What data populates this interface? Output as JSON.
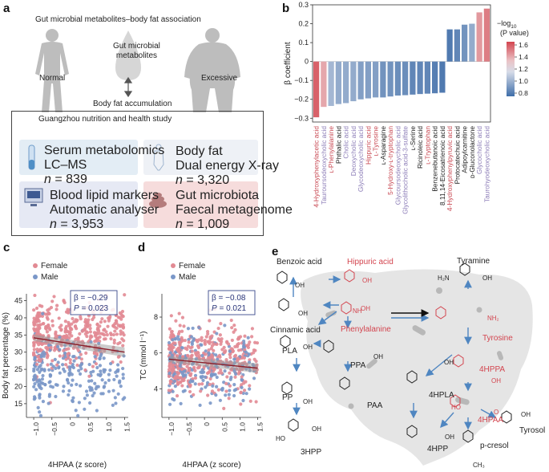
{
  "panels": {
    "a": "a",
    "b": "b",
    "c": "c",
    "d": "d",
    "e": "e"
  },
  "panel_a": {
    "title": "Gut microbial metabolites–body fat association",
    "normal": "Normal",
    "excessive": "Excessive",
    "metabolites": [
      "Gut microbial",
      "metabolites"
    ],
    "accumulation": "Body fat accumulation",
    "study_title": "Guangzhou nutrition and health study",
    "cards": [
      {
        "l1": "Serum metabolomics",
        "l2": "LC–MS",
        "n_label": "n",
        "n_value": " = 839",
        "color": "#e3edf5"
      },
      {
        "l1": "Body fat",
        "l2": "Dual energy X-ray",
        "n_label": "n",
        "n_value": " = 3,320",
        "color": "#eef1f6"
      },
      {
        "l1": "Blood lipid markers",
        "l2": "Automatic analyser",
        "n_label": "n",
        "n_value": " = 3,953",
        "color": "#e6e9f4"
      },
      {
        "l1": "Gut microbiota",
        "l2": "Faecal metagenome",
        "n_label": "n",
        "n_value": " = 1,009",
        "color": "#f6dcdc"
      }
    ]
  },
  "chart_data": [
    {
      "type": "bar",
      "panel": "b",
      "ylabel": "β coefficient",
      "ylim": [
        -0.32,
        0.3
      ],
      "yticks": [
        -0.3,
        -0.2,
        -0.1,
        0,
        0.1,
        0.2,
        0.3
      ],
      "ytick_labels": [
        "−0.3",
        "−0.2",
        "−0.1",
        "0",
        "0.1",
        "0.2",
        "0.3"
      ],
      "colorbar_title": [
        "−log",
        "10",
        "(P value)"
      ],
      "colorbar_ticks": [
        "1.6",
        "1.4",
        "1.2",
        "1.0",
        "0.8"
      ],
      "colors": {
        "negative_low": "#4c7db5",
        "negative_mid": "#a9bcd8",
        "positive_low": "#3e6fa9",
        "positive_mid": "#c7d2e6",
        "pink": "#e6a3a9",
        "red": "#d3454f"
      },
      "categories": [
        "4-Hydroxyphenylacetic acid",
        "Tauroursodeoxycholic acid",
        "ʟ-Phenylalanine",
        "Phthalic acid",
        "Cholic acid",
        "Deoxycholic acid",
        "Glycodeoxycholic acid",
        "Hippuric acid",
        "ʟ-Tyrosine",
        "ʟ-Asparagine",
        "5-Hydroxy-ʟ-tryptophan",
        "Glycoursodeoxycholic acid",
        "Glycolithocholic acid-3-sulfate",
        "ʟ-Serine",
        "Ricinoleic acid",
        "ʟ-Tryptophan",
        "Benzenebutanoic acid",
        "8,11,14-Eicosatrienoic acid",
        "4-Hydroxyphenylpyruvic acid",
        "Protocatechuic acid",
        "Adipoylcarnitine",
        "ᴅ-Gluconolactone",
        "Glycocholic acid",
        "Taurohyodeoxycholic acid"
      ],
      "values": [
        -0.295,
        -0.24,
        -0.235,
        -0.225,
        -0.22,
        -0.21,
        -0.2,
        -0.195,
        -0.19,
        -0.19,
        -0.185,
        -0.18,
        -0.178,
        -0.175,
        -0.172,
        -0.17,
        -0.168,
        -0.165,
        0.17,
        0.17,
        0.195,
        0.2,
        0.26,
        0.28
      ],
      "neglog10_p": [
        1.55,
        1.3,
        1.05,
        1.0,
        1.0,
        1.0,
        0.95,
        0.95,
        0.95,
        0.9,
        0.9,
        0.88,
        0.88,
        0.85,
        0.85,
        0.85,
        0.82,
        0.8,
        0.8,
        0.85,
        0.9,
        1.0,
        1.35,
        1.45
      ],
      "label_colors": [
        "#c94b55",
        "#8d7eb8",
        "#c94b55",
        "#222",
        "#8d7eb8",
        "#8d7eb8",
        "#8d7eb8",
        "#c94b55",
        "#c94b55",
        "#222",
        "#c94b55",
        "#8d7eb8",
        "#8d7eb8",
        "#222",
        "#222",
        "#c94b55",
        "#222",
        "#222",
        "#c94b55",
        "#222",
        "#222",
        "#222",
        "#8d7eb8",
        "#8d7eb8"
      ]
    },
    {
      "type": "scatter",
      "panel": "c",
      "xlabel": "4HPAA (z score)",
      "ylabel": "Body fat percentage (%)",
      "xlim": [
        -1.2,
        1.6
      ],
      "ylim": [
        11,
        47
      ],
      "xticks": [
        -1.0,
        -0.5,
        0,
        0.5,
        1.0,
        1.5
      ],
      "xtick_labels": [
        "−1.0",
        "−0.5",
        "0",
        "0.5",
        "1.0",
        "1.5"
      ],
      "yticks": [
        15,
        20,
        25,
        30,
        35,
        40,
        45
      ],
      "legend": [
        "Female",
        "Male"
      ],
      "colors": {
        "Female": "#e28a93",
        "Male": "#7a97c8",
        "line": "#8b1e2a"
      },
      "fit_line": {
        "x": [
          -1.0,
          1.5
        ],
        "y": [
          34.2,
          30.0
        ]
      },
      "stat_beta": {
        "symbol": "β",
        "value": " = −0.29"
      },
      "stat_p": {
        "symbol": "P",
        "value": " = 0.023"
      },
      "series": [
        {
          "name": "Female",
          "count": 430,
          "x_range": [
            -1.0,
            1.5
          ],
          "y_mean": 35,
          "y_sd": 4.5
        },
        {
          "name": "Male",
          "count": 230,
          "x_range": [
            -1.0,
            1.5
          ],
          "y_mean": 24,
          "y_sd": 5
        }
      ]
    },
    {
      "type": "scatter",
      "panel": "d",
      "xlabel": "4HPAA (z score)",
      "ylabel": "TC (mmol l⁻¹)",
      "xlim": [
        -1.2,
        1.6
      ],
      "ylim": [
        2.4,
        9.3
      ],
      "xticks": [
        -1.0,
        -0.5,
        0,
        0.5,
        1.0,
        1.5
      ],
      "xtick_labels": [
        "−1.0",
        "−0.5",
        "0",
        "0.5",
        "1.0",
        "1.5"
      ],
      "yticks": [
        4,
        6,
        8
      ],
      "legend": [
        "Female",
        "Male"
      ],
      "colors": {
        "Female": "#e28a93",
        "Male": "#7a97c8",
        "line": "#8b1e2a"
      },
      "fit_line": {
        "x": [
          -1.0,
          1.5
        ],
        "y": [
          5.65,
          5.15
        ]
      },
      "stat_beta": {
        "symbol": "β",
        "value": " = −0.08"
      },
      "stat_p": {
        "symbol": "P",
        "value": " = 0.021"
      },
      "series": [
        {
          "name": "Female",
          "count": 430,
          "x_range": [
            -1.0,
            1.5
          ],
          "y_mean": 5.6,
          "y_sd": 0.95
        },
        {
          "name": "Male",
          "count": 230,
          "x_range": [
            -1.0,
            1.5
          ],
          "y_mean": 5.2,
          "y_sd": 0.9
        }
      ]
    }
  ],
  "panel_e": {
    "nodes": [
      {
        "key": "benzoic",
        "label": "Benzoic acid",
        "color": "#222"
      },
      {
        "key": "hippuric",
        "label": "Hippuric acid",
        "color": "#d3454f"
      },
      {
        "key": "tyramine",
        "label": "Tyramine",
        "color": "#222"
      },
      {
        "key": "cinnamic",
        "label": "Cinnamic acid",
        "color": "#222"
      },
      {
        "key": "phe",
        "label": "Phenylalanine",
        "color": "#d3454f"
      },
      {
        "key": "tyr",
        "label": "Tyrosine",
        "color": "#d3454f"
      },
      {
        "key": "pla",
        "label": "PLA",
        "color": "#222"
      },
      {
        "key": "ppa",
        "label": "PPA",
        "color": "#222"
      },
      {
        "key": "pp",
        "label": "PP",
        "color": "#222"
      },
      {
        "key": "paa",
        "label": "PAA",
        "color": "#222"
      },
      {
        "key": "4hpla",
        "label": "4HPLA",
        "color": "#222"
      },
      {
        "key": "4hppa",
        "label": "4HPPA",
        "color": "#d3454f"
      },
      {
        "key": "4hpaa",
        "label": "4HPAA",
        "color": "#d3454f"
      },
      {
        "key": "3hpp",
        "label": "3HPP",
        "color": "#222"
      },
      {
        "key": "4hpp",
        "label": "4HPP",
        "color": "#222"
      },
      {
        "key": "pcresol",
        "label": "p-cresol",
        "color": "#222"
      },
      {
        "key": "tyrosol",
        "label": "Tyrosol",
        "color": "#222"
      }
    ],
    "atoms": {
      "oh": "OH",
      "o": "O",
      "nh": "NH",
      "h2n": "H₂N",
      "ho": "HO",
      "nh2": "NH₂",
      "ch3": "CH₃"
    }
  }
}
